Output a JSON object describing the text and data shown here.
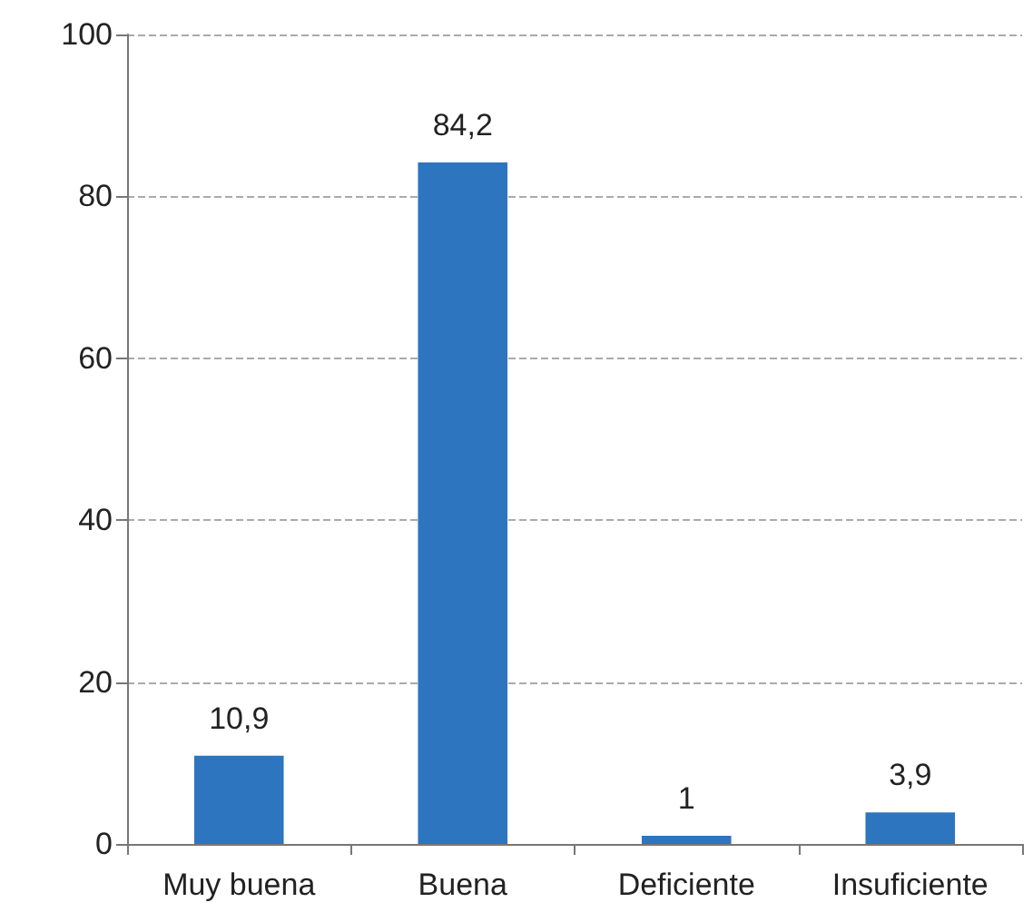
{
  "chart_data": {
    "type": "bar",
    "categories": [
      "Muy buena",
      "Buena",
      "Deficiente",
      "Insuficiente"
    ],
    "values": [
      10.9,
      84.2,
      1,
      3.9
    ],
    "color": "#2e75bf",
    "value_labels": [
      "10,9",
      "84,2",
      "1",
      "3,9"
    ],
    "ylim": [
      0,
      100
    ],
    "yticks": [
      0,
      20,
      40,
      60,
      80,
      100
    ],
    "grid": "y"
  }
}
